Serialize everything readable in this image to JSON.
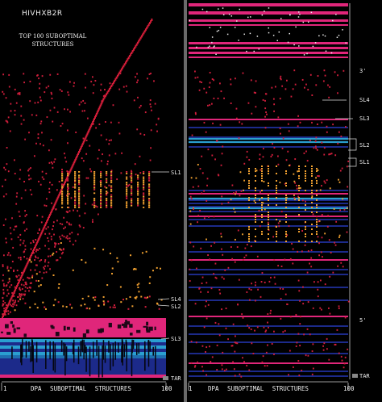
{
  "figure": {
    "title": "HIVHXB2R",
    "subtitle": "TOP 100 SUBOPTIMAL STRUCTURES"
  },
  "left_panel": {
    "x_axis": {
      "start": "1",
      "label": "DPA SUBOPTIMAL STRUCTURES",
      "end": "100"
    },
    "labels": [
      "SL1",
      "SL4",
      "SL2",
      "SL3",
      "TAR"
    ]
  },
  "right_panel": {
    "x_axis": {
      "start": "1",
      "label": "DPA SUBOPTIMAL STRUCTURES",
      "end": "100"
    },
    "end_labels": {
      "top": "3'",
      "bottom": "5'"
    },
    "labels": [
      "SL4",
      "SL3",
      "SL2",
      "SL1",
      "TAR"
    ]
  },
  "colors": {
    "diagonal": "#d81e3a",
    "pairs_red": "#d01e3c",
    "pairs_orange": "#f0a030",
    "magenta": "#e0267a",
    "cyan": "#2a9fd0",
    "navy": "#1c2a8a",
    "divider": "#6a6a6a"
  }
}
